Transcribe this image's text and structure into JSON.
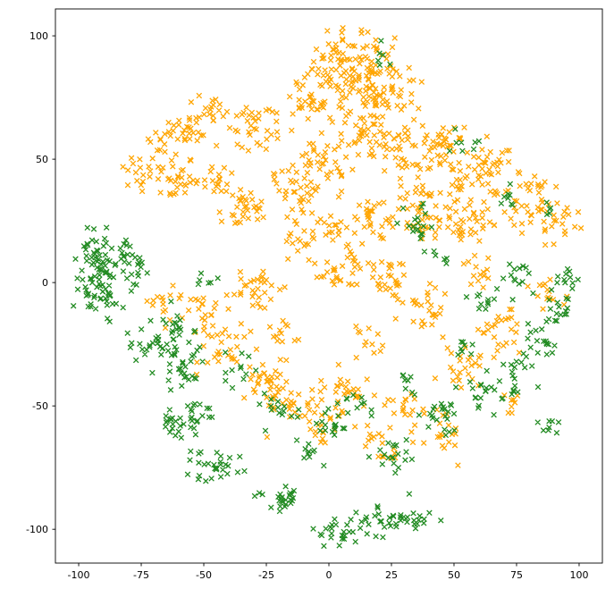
{
  "chart_data": {
    "type": "scatter",
    "title": "",
    "xlabel": "",
    "ylabel": "",
    "marker": "x",
    "grid": false,
    "legend": "none",
    "xlim": [
      -109.3,
      109.3
    ],
    "ylim": [
      -113.7,
      110.9
    ],
    "xticks": [
      -100,
      -75,
      -50,
      -25,
      0,
      25,
      50,
      75,
      100
    ],
    "yticks": [
      -100,
      -50,
      0,
      50,
      100
    ],
    "seed": 42,
    "axis_color": "#000000",
    "background": "#ffffff",
    "series": [
      {
        "name": "orange",
        "color": "#FFA500",
        "clusters": [
          [
            8,
            88,
            10,
            7,
            120
          ],
          [
            22,
            75,
            8,
            6,
            70
          ],
          [
            -8,
            73,
            5,
            4,
            25
          ],
          [
            -45,
            70,
            4,
            4,
            18
          ],
          [
            -57,
            62,
            5,
            5,
            30
          ],
          [
            -28,
            62,
            6,
            5,
            35
          ],
          [
            -70,
            55,
            3,
            3,
            12
          ],
          [
            -75,
            42,
            4,
            4,
            18
          ],
          [
            -60,
            41,
            5,
            4,
            30
          ],
          [
            -44,
            42,
            3,
            3,
            12
          ],
          [
            -34,
            30,
            5,
            5,
            35
          ],
          [
            -18,
            38,
            4,
            5,
            18
          ],
          [
            -3,
            49,
            6,
            6,
            45
          ],
          [
            13,
            57,
            4,
            4,
            20
          ],
          [
            27,
            55,
            5,
            5,
            35
          ],
          [
            45,
            56,
            6,
            5,
            40
          ],
          [
            62,
            46,
            6,
            6,
            45
          ],
          [
            80,
            32,
            6,
            6,
            40
          ],
          [
            92,
            23,
            4,
            5,
            20
          ],
          [
            55,
            25,
            6,
            5,
            40
          ],
          [
            37,
            28,
            5,
            5,
            35
          ],
          [
            18,
            25,
            5,
            5,
            30
          ],
          [
            2,
            22,
            4,
            4,
            18
          ],
          [
            -12,
            18,
            4,
            4,
            15
          ],
          [
            5,
            5,
            6,
            5,
            35
          ],
          [
            25,
            2,
            5,
            5,
            30
          ],
          [
            -28,
            -2,
            5,
            5,
            30
          ],
          [
            -50,
            -12,
            5,
            5,
            25
          ],
          [
            -65,
            -8,
            4,
            4,
            15
          ],
          [
            -42,
            -28,
            5,
            5,
            25
          ],
          [
            -25,
            -40,
            5,
            5,
            30
          ],
          [
            -12,
            -50,
            6,
            5,
            35
          ],
          [
            8,
            -45,
            5,
            5,
            30
          ],
          [
            40,
            -12,
            5,
            5,
            25
          ],
          [
            55,
            -35,
            5,
            5,
            25
          ],
          [
            45,
            -60,
            5,
            4,
            20
          ],
          [
            20,
            -65,
            5,
            4,
            20
          ],
          [
            70,
            -20,
            5,
            5,
            25
          ],
          [
            88,
            -5,
            4,
            4,
            15
          ],
          [
            60,
            5,
            4,
            4,
            15
          ],
          [
            -10,
            33,
            3,
            3,
            10
          ],
          [
            35,
            40,
            4,
            4,
            15
          ],
          [
            50,
            40,
            3,
            3,
            10
          ],
          [
            -18,
            -20,
            4,
            4,
            12
          ],
          [
            15,
            -25,
            4,
            4,
            12
          ],
          [
            30,
            -50,
            4,
            4,
            15
          ],
          [
            -5,
            -60,
            4,
            4,
            12
          ],
          [
            75,
            -50,
            3,
            3,
            8
          ]
        ]
      },
      {
        "name": "green",
        "color": "#228B22",
        "clusters": [
          [
            -93,
            3,
            4,
            8,
            70
          ],
          [
            -83,
            8,
            4,
            4,
            25
          ],
          [
            -88,
            -8,
            3,
            3,
            15
          ],
          [
            -70,
            -25,
            5,
            4,
            30
          ],
          [
            -58,
            -35,
            5,
            4,
            30
          ],
          [
            -54,
            -55,
            4,
            3,
            25
          ],
          [
            -63,
            -57,
            3,
            2,
            12
          ],
          [
            -45,
            -75,
            5,
            3,
            30
          ],
          [
            -18,
            -87,
            5,
            3,
            25
          ],
          [
            4,
            -100,
            4,
            3,
            25
          ],
          [
            20,
            -97,
            4,
            3,
            22
          ],
          [
            33,
            -96,
            4,
            2,
            18
          ],
          [
            -8,
            -70,
            3,
            3,
            10
          ],
          [
            0,
            -58,
            4,
            4,
            15
          ],
          [
            25,
            -70,
            4,
            4,
            20
          ],
          [
            45,
            -55,
            5,
            4,
            22
          ],
          [
            60,
            -45,
            4,
            4,
            18
          ],
          [
            75,
            -40,
            4,
            4,
            18
          ],
          [
            85,
            -25,
            4,
            4,
            20
          ],
          [
            93,
            -13,
            3,
            4,
            15
          ],
          [
            96,
            0,
            3,
            3,
            12
          ],
          [
            75,
            0,
            4,
            4,
            15
          ],
          [
            62,
            -8,
            3,
            3,
            10
          ],
          [
            36,
            24,
            4,
            4,
            18
          ],
          [
            55,
            55,
            3,
            3,
            8
          ],
          [
            70,
            35,
            3,
            3,
            8
          ],
          [
            20,
            90,
            3,
            3,
            6
          ],
          [
            -60,
            -18,
            4,
            4,
            15
          ],
          [
            -35,
            -35,
            4,
            4,
            12
          ],
          [
            -20,
            -52,
            4,
            4,
            15
          ],
          [
            10,
            -50,
            4,
            4,
            12
          ],
          [
            55,
            -25,
            3,
            3,
            8
          ],
          [
            88,
            -55,
            3,
            3,
            8
          ],
          [
            30,
            -40,
            3,
            3,
            8
          ],
          [
            -75,
            5,
            3,
            3,
            8
          ],
          [
            45,
            10,
            3,
            3,
            6
          ],
          [
            90,
            30,
            2,
            2,
            5
          ],
          [
            -50,
            0,
            3,
            3,
            6
          ]
        ]
      }
    ]
  }
}
